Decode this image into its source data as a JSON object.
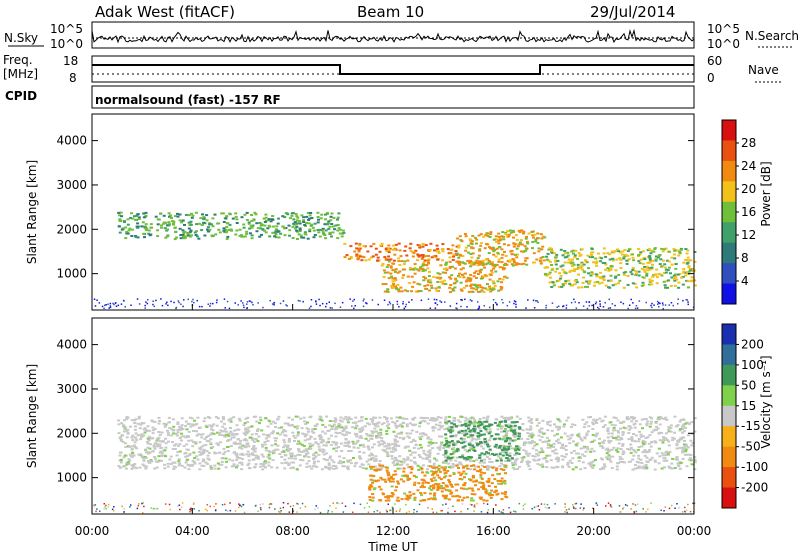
{
  "header": {
    "station": "Adak West (fitACF)",
    "beam": "Beam 10",
    "date": "29/Jul/2014"
  },
  "noise_panel": {
    "left_label": "N.Sky",
    "right_label": "N.Search",
    "left_ticks": [
      "10^5",
      "10^0"
    ],
    "right_ticks": [
      "10^5",
      "10^0"
    ]
  },
  "freq_panel": {
    "left_label_top": "Freq.",
    "left_label_bottom": "[MHz]",
    "left_ticks": [
      "18",
      "8"
    ],
    "right_label": "Nave",
    "right_ticks": [
      "60",
      "0"
    ]
  },
  "cpid": {
    "label": "CPID",
    "text": "normalsound (fast) -157 RF"
  },
  "chart_data": [
    {
      "type": "heatmap",
      "name": "power",
      "ylabel": "Slant Range [km]",
      "xlabel": "Time UT",
      "x_ticks": [
        "00:00",
        "04:00",
        "08:00",
        "12:00",
        "16:00",
        "20:00",
        "00:00"
      ],
      "y_ticks": [
        1000,
        2000,
        3000,
        4000
      ],
      "ylim": [
        180,
        4600
      ],
      "colorbar_label": "Power [dB]",
      "colorbar_ticks": [
        4,
        8,
        12,
        16,
        20,
        24,
        28
      ],
      "colorbar_colors": [
        "#1010e6",
        "#2f4fbf",
        "#2e7a78",
        "#3fa06a",
        "#6fbf3a",
        "#f2c21a",
        "#f08a10",
        "#ea5010",
        "#d81010"
      ],
      "approx_features": [
        {
          "t": [
            1.0,
            10.0
          ],
          "range_km": [
            1800,
            2400
          ],
          "level_db": 14
        },
        {
          "t": [
            10.0,
            14.5
          ],
          "range_km": [
            1300,
            1700
          ],
          "level_db": 26
        },
        {
          "t": [
            11.5,
            16.5
          ],
          "range_km": [
            600,
            1300
          ],
          "level_db": 20
        },
        {
          "t": [
            14.5,
            18.0
          ],
          "range_km": [
            1200,
            2000
          ],
          "level_db": 22
        },
        {
          "t": [
            18.0,
            24.0
          ],
          "range_km": [
            700,
            1600
          ],
          "level_db": 18
        }
      ]
    },
    {
      "type": "heatmap",
      "name": "velocity",
      "ylabel": "Slant Range [km]",
      "xlabel": "Time UT",
      "x_ticks": [
        "00:00",
        "04:00",
        "08:00",
        "12:00",
        "16:00",
        "20:00",
        "00:00"
      ],
      "y_ticks": [
        1000,
        2000,
        3000,
        4000
      ],
      "ylim": [
        180,
        4600
      ],
      "colorbar_label": "Velocity [m s⁻¹]",
      "colorbar_ticks": [
        "200",
        "100",
        "50",
        "15",
        "-15",
        "-50",
        "-100",
        "-200"
      ],
      "colorbar_colors": [
        "#1a2fb0",
        "#2f6f9a",
        "#3f9a5a",
        "#7fd04a",
        "#c8c8c8",
        "#f5b01a",
        "#f08a10",
        "#ea5010",
        "#d81010"
      ],
      "approx_features": [
        {
          "t": [
            1.0,
            24.0
          ],
          "range_km": [
            1200,
            2400
          ],
          "velocity": 0
        },
        {
          "t": [
            11.0,
            16.5
          ],
          "range_km": [
            500,
            1300
          ],
          "velocity": -60
        },
        {
          "t": [
            14.0,
            17.0
          ],
          "range_km": [
            1400,
            2300
          ],
          "velocity": 40
        }
      ]
    }
  ]
}
